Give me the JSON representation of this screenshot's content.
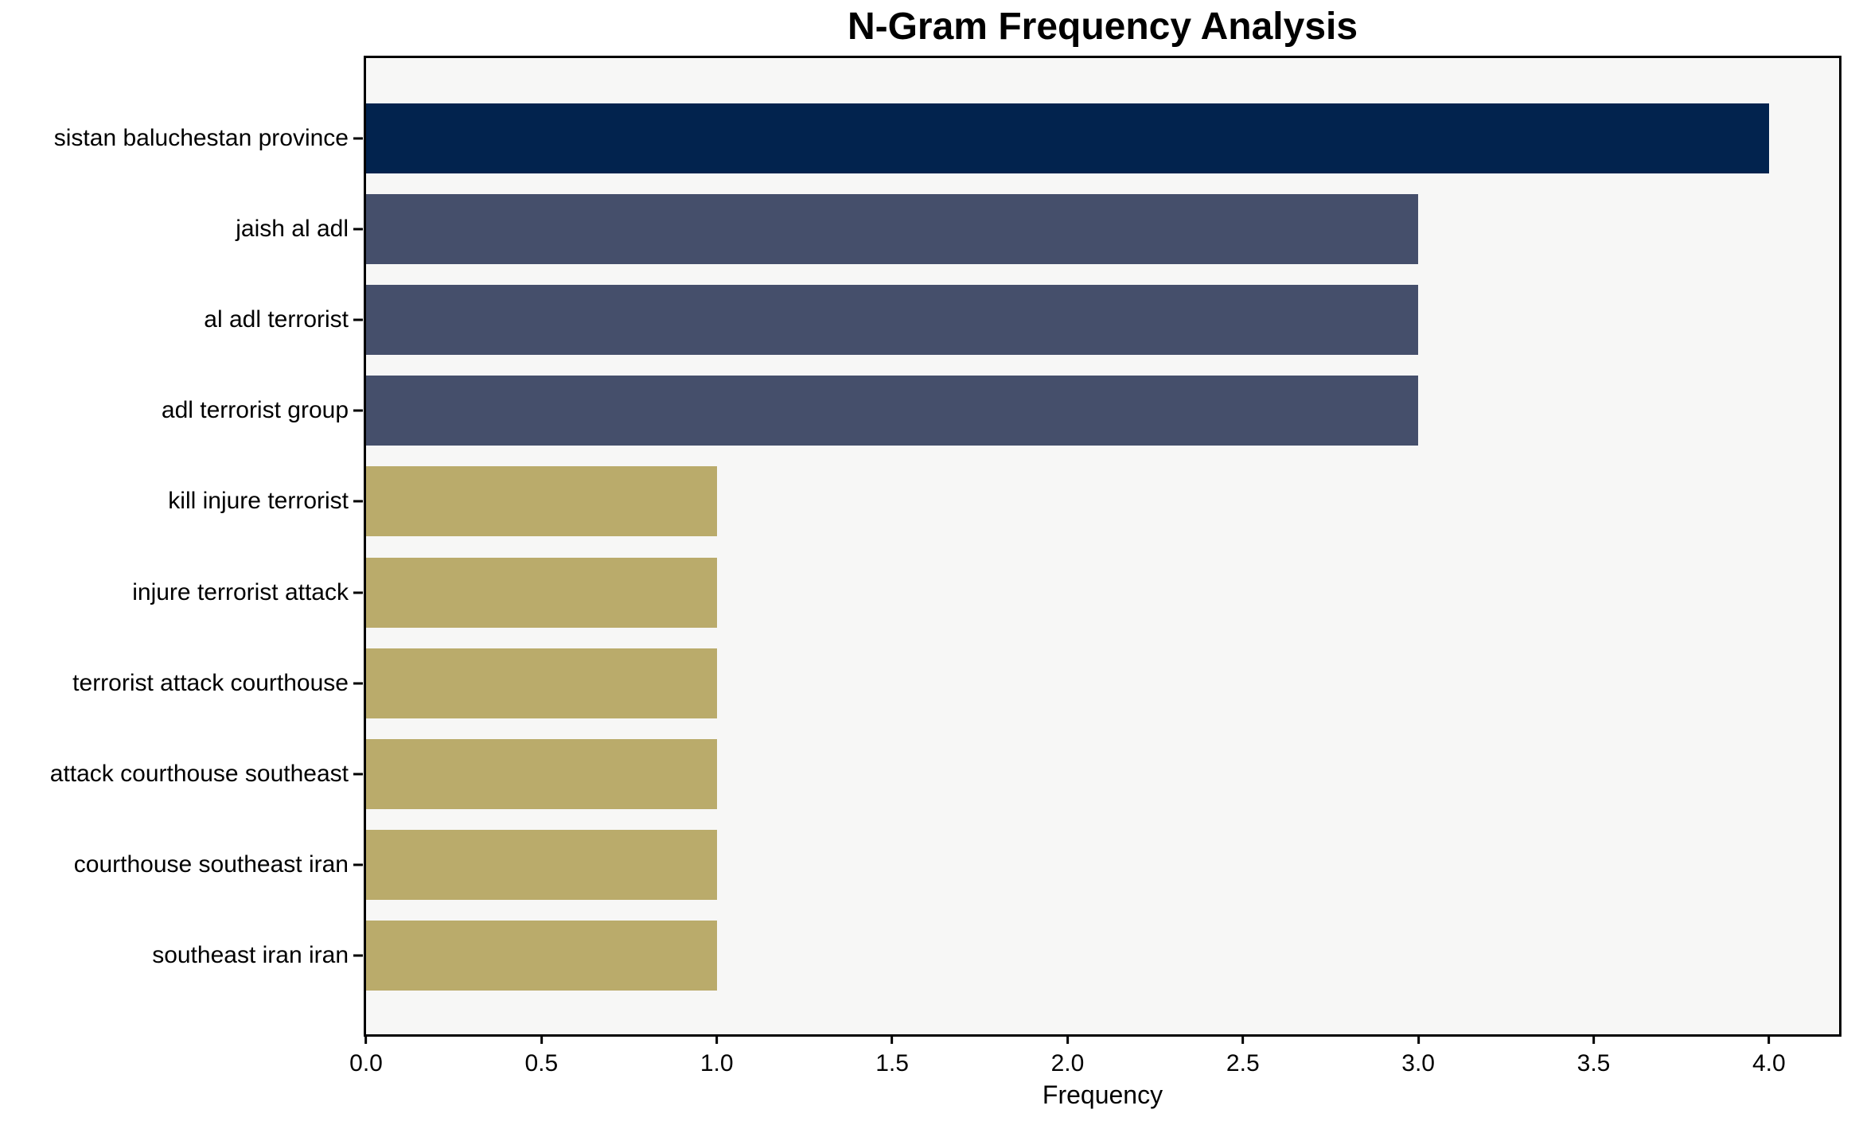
{
  "chart_data": {
    "type": "bar",
    "orientation": "horizontal",
    "title": "N-Gram Frequency Analysis",
    "xlabel": "Frequency",
    "ylabel": "",
    "categories": [
      "sistan baluchestan province",
      "jaish al adl",
      "al adl terrorist",
      "adl terrorist group",
      "kill injure terrorist",
      "injure terrorist attack",
      "terrorist attack courthouse",
      "attack courthouse southeast",
      "courthouse southeast iran",
      "southeast iran iran"
    ],
    "values": [
      4,
      3,
      3,
      3,
      1,
      1,
      1,
      1,
      1,
      1
    ],
    "xlim": [
      0,
      4.2
    ],
    "xticks": [
      0.0,
      0.5,
      1.0,
      1.5,
      2.0,
      2.5,
      3.0,
      3.5,
      4.0
    ],
    "xtick_labels": [
      "0.0",
      "0.5",
      "1.0",
      "1.5",
      "2.0",
      "2.5",
      "3.0",
      "3.5",
      "4.0"
    ],
    "grid": false,
    "legend": null,
    "bar_colors": [
      "#02234e",
      "#454f6b",
      "#454f6b",
      "#454f6b",
      "#baab6b",
      "#baab6b",
      "#baab6b",
      "#baab6b",
      "#baab6b",
      "#baab6b"
    ],
    "colors": {
      "plot_background": "#f7f7f6",
      "figure_background": "#ffffff",
      "spine": "#000000",
      "text": "#000000",
      "navy": "#02234e",
      "slate": "#454f6b",
      "khaki": "#baab6b"
    }
  }
}
